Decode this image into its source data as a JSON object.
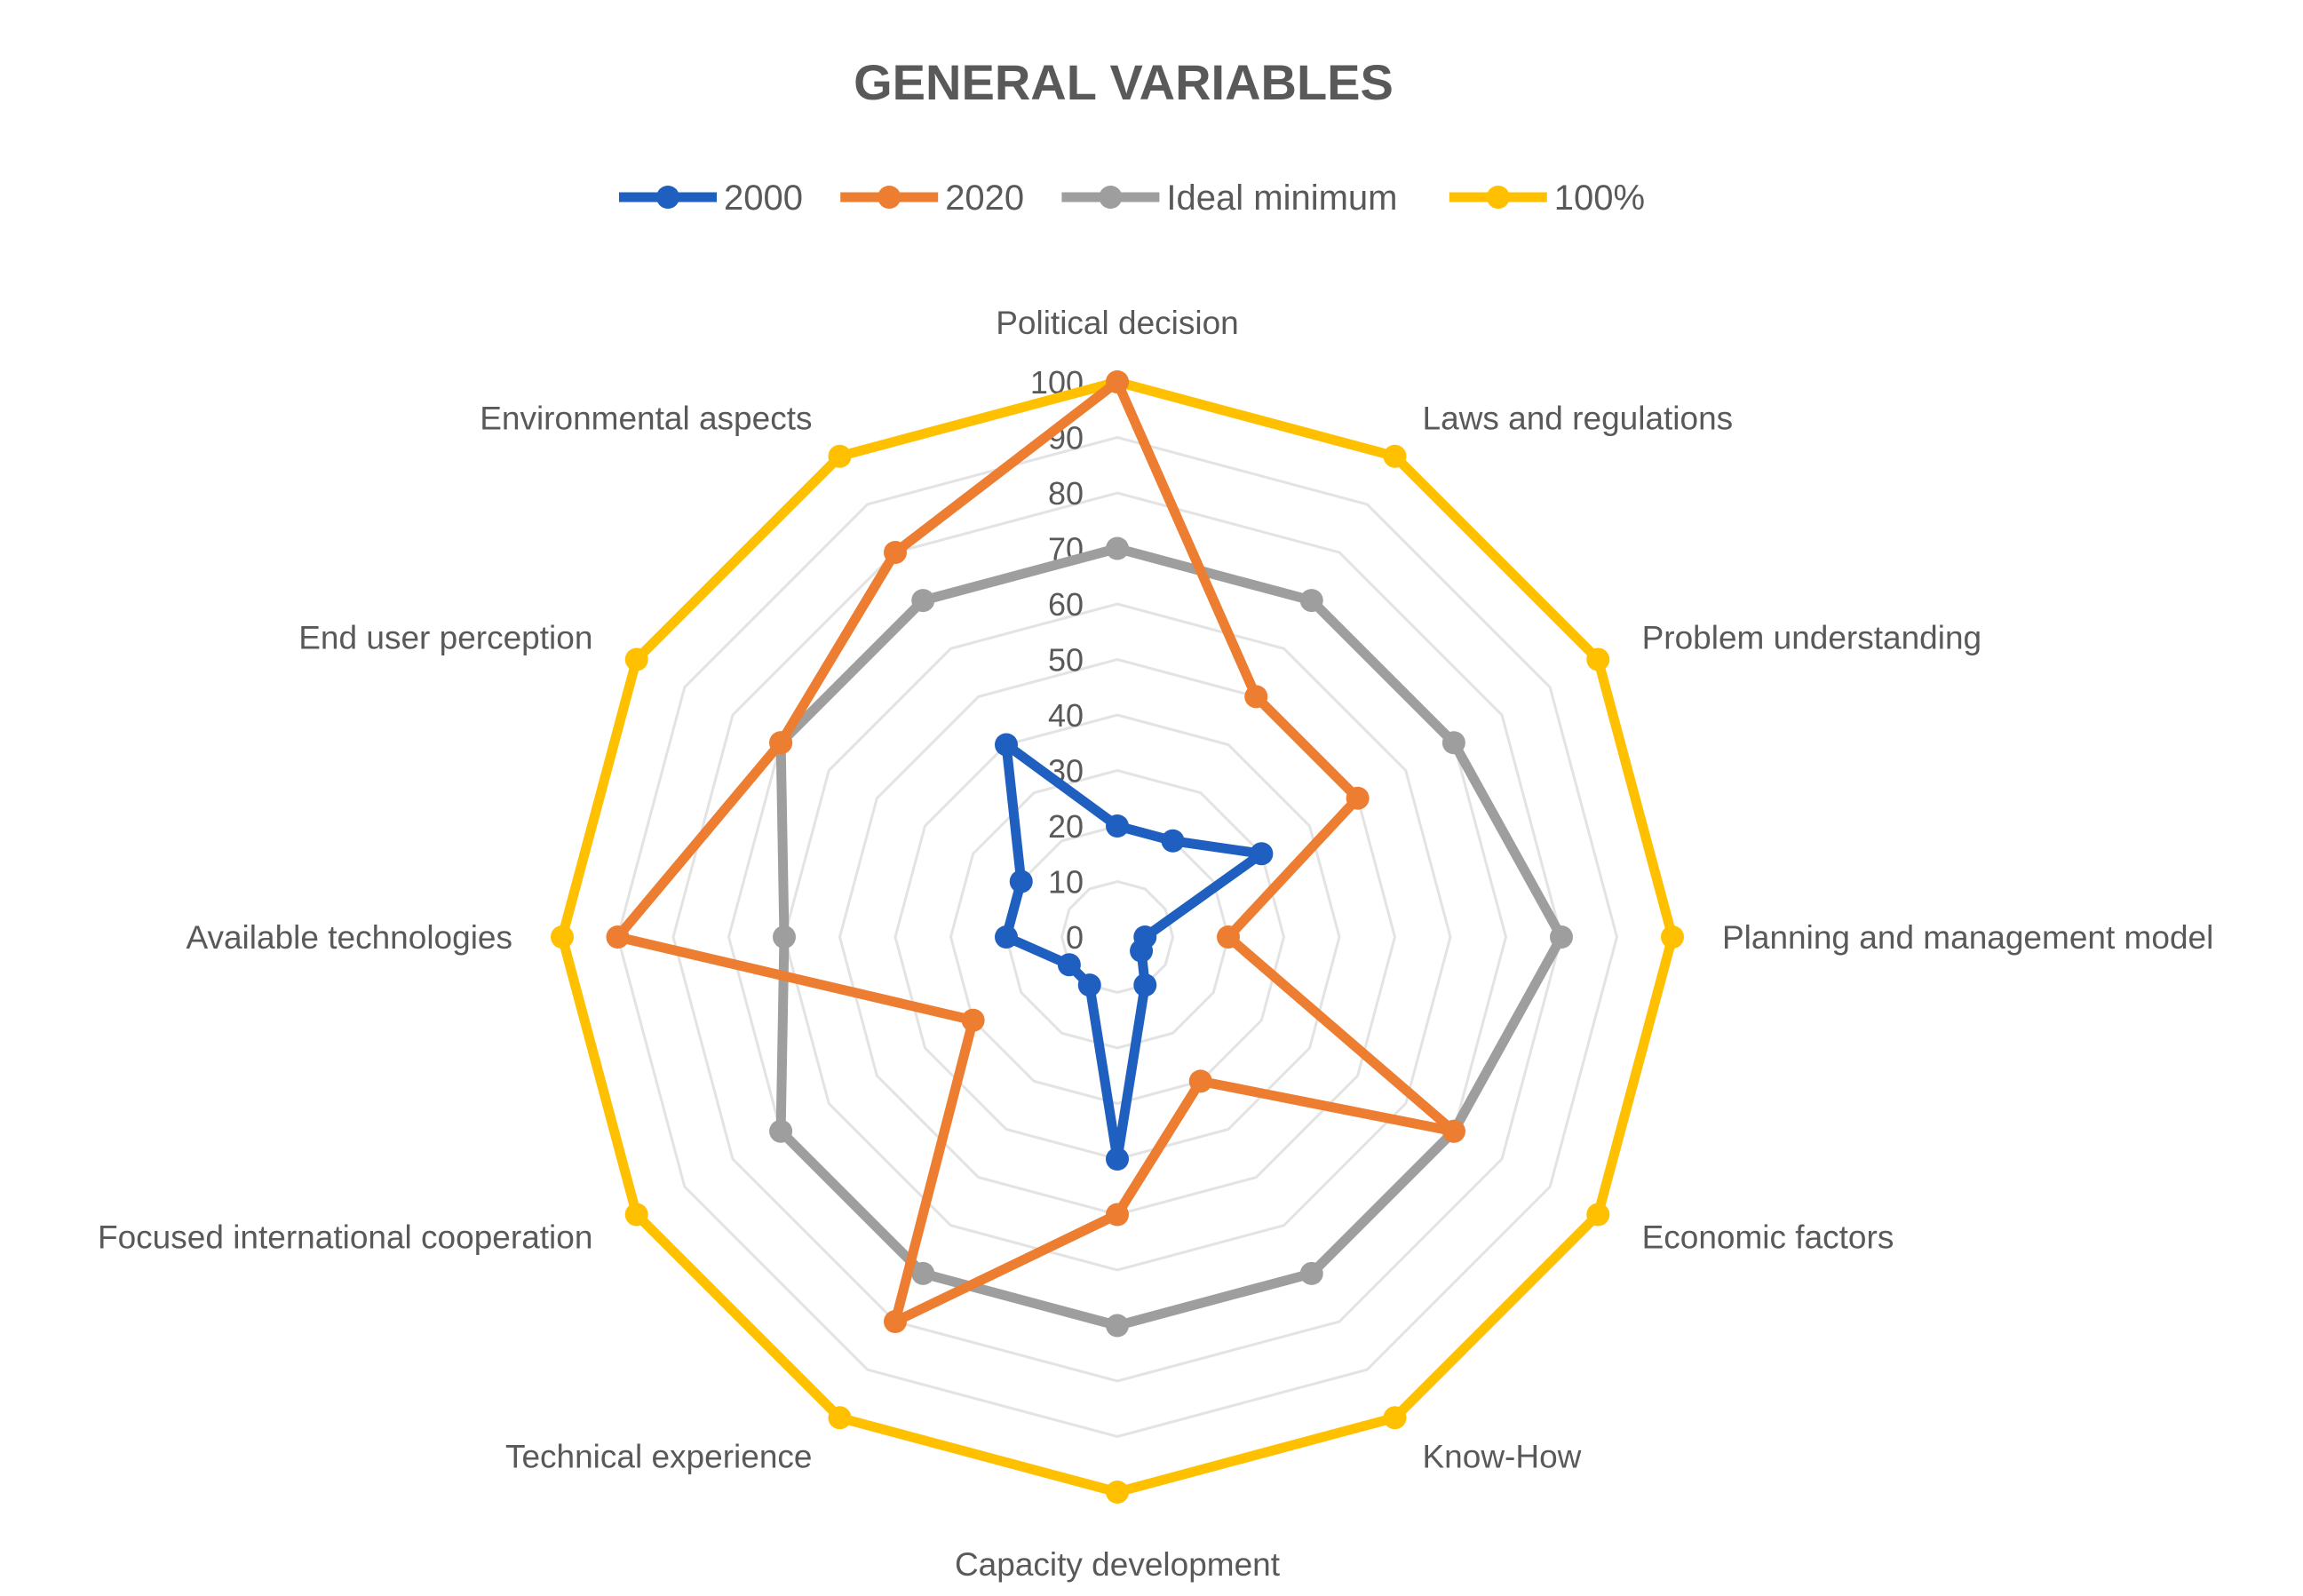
{
  "chart_data": {
    "type": "radar",
    "title": "GENERAL VARIABLES",
    "rlim": [
      0,
      100
    ],
    "ticks": [
      0,
      10,
      20,
      30,
      40,
      50,
      60,
      70,
      80,
      90,
      100
    ],
    "tick_labels": [
      "0",
      "10",
      "20",
      "30",
      "40",
      "50",
      "60",
      "70",
      "80",
      "90",
      "100"
    ],
    "grid": true,
    "legend_position": "top",
    "categories": [
      "Political decision",
      "Laws and regulations",
      "Problem understanding",
      "Planning and management model",
      "Economic factors",
      "Know-How",
      "Capacity development",
      "Technical experience",
      "Focused international cooperation",
      "Available technologies",
      "End user perception",
      "Environmental aspects"
    ],
    "series": [
      {
        "name": "2000",
        "color": "#1F5FBF",
        "values": [
          20,
          20,
          30,
          5,
          5,
          10,
          40,
          10,
          10,
          20,
          20,
          40
        ]
      },
      {
        "name": "2020",
        "color": "#ED7D31",
        "values": [
          100,
          50,
          50,
          20,
          70,
          30,
          50,
          80,
          30,
          90,
          70,
          80
        ]
      },
      {
        "name": "Ideal minimum",
        "color": "#9E9E9E",
        "values": [
          70,
          70,
          70,
          80,
          70,
          70,
          70,
          70,
          70,
          60,
          70,
          70
        ]
      },
      {
        "name": "100%",
        "color": "#FFC000",
        "values": [
          100,
          100,
          100,
          100,
          100,
          100,
          100,
          100,
          100,
          100,
          100,
          100
        ]
      }
    ]
  }
}
